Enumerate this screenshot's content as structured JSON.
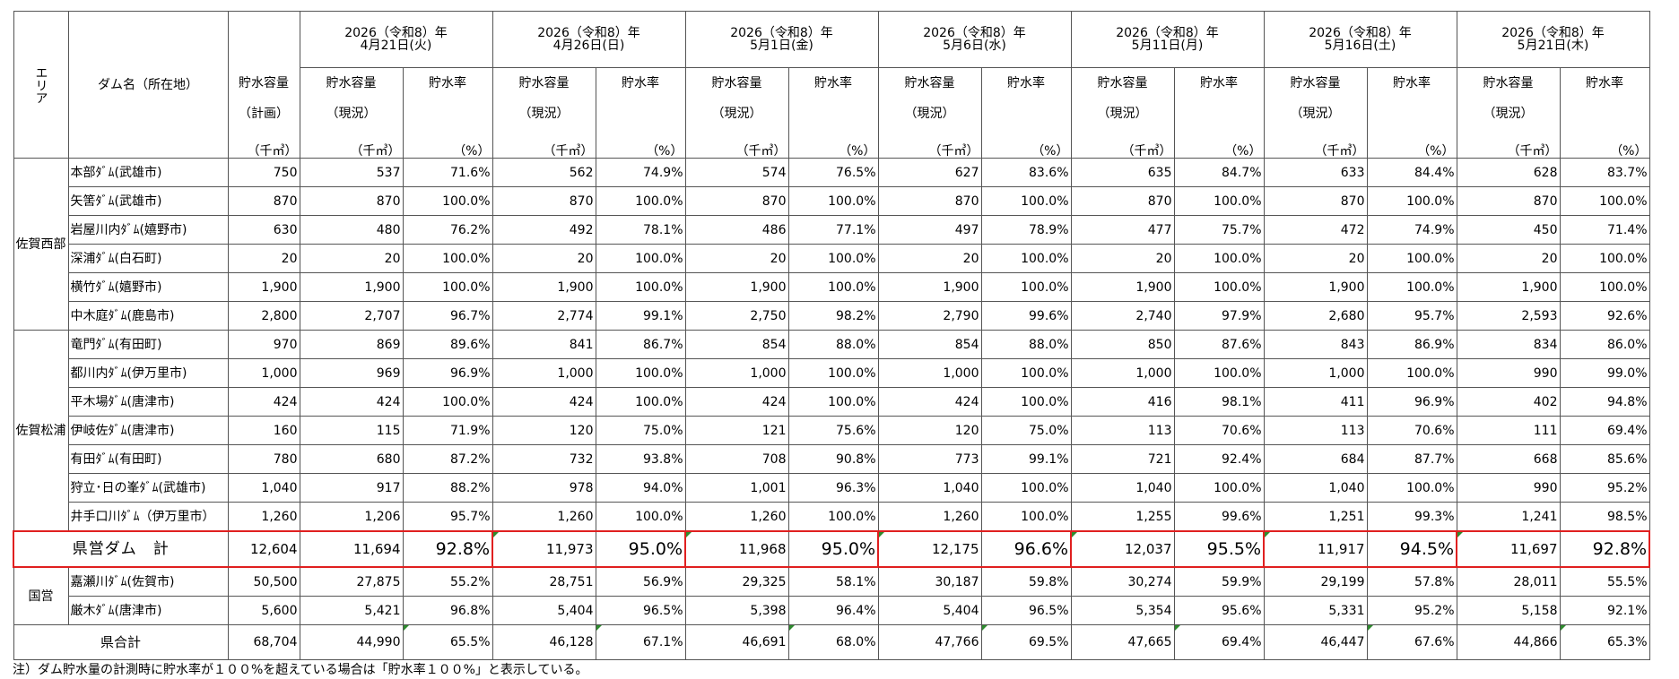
{
  "header": {
    "area": "エリア",
    "dam_name": "ダム名（所在地）",
    "plan_cap_line1": "貯水容量",
    "plan_cap_line2": "（計画）",
    "unit_volume": "（千㎥）",
    "cur_cap_line1": "貯水容量",
    "cur_cap_line2": "（現況）",
    "rate_label": "貯水率",
    "unit_rate": "（%）",
    "dates": [
      {
        "year": "2026（令和8）年",
        "day": "4月21日(火)"
      },
      {
        "year": "2026（令和8）年",
        "day": "4月26日(日)"
      },
      {
        "year": "2026（令和8）年",
        "day": "5月1日(金)"
      },
      {
        "year": "2026（令和8）年",
        "day": "5月6日(水)"
      },
      {
        "year": "2026（令和8）年",
        "day": "5月11日(月)"
      },
      {
        "year": "2026（令和8）年",
        "day": "5月16日(土)"
      },
      {
        "year": "2026（令和8）年",
        "day": "5月21日(木)"
      }
    ]
  },
  "areas": {
    "west": "佐賀西部",
    "matsuura": "佐賀松浦",
    "national": "国営"
  },
  "rows": [
    {
      "name": "本部ﾀﾞﾑ(武雄市)",
      "plan": "750",
      "vals": [
        [
          "537",
          "71.6%"
        ],
        [
          "562",
          "74.9%"
        ],
        [
          "574",
          "76.5%"
        ],
        [
          "627",
          "83.6%"
        ],
        [
          "635",
          "84.7%"
        ],
        [
          "633",
          "84.4%"
        ],
        [
          "628",
          "83.7%"
        ]
      ]
    },
    {
      "name": "矢筈ﾀﾞﾑ(武雄市)",
      "plan": "870",
      "vals": [
        [
          "870",
          "100.0%"
        ],
        [
          "870",
          "100.0%"
        ],
        [
          "870",
          "100.0%"
        ],
        [
          "870",
          "100.0%"
        ],
        [
          "870",
          "100.0%"
        ],
        [
          "870",
          "100.0%"
        ],
        [
          "870",
          "100.0%"
        ]
      ]
    },
    {
      "name": "岩屋川内ﾀﾞﾑ(嬉野市)",
      "plan": "630",
      "vals": [
        [
          "480",
          "76.2%"
        ],
        [
          "492",
          "78.1%"
        ],
        [
          "486",
          "77.1%"
        ],
        [
          "497",
          "78.9%"
        ],
        [
          "477",
          "75.7%"
        ],
        [
          "472",
          "74.9%"
        ],
        [
          "450",
          "71.4%"
        ]
      ]
    },
    {
      "name": "深浦ﾀﾞﾑ(白石町)",
      "plan": "20",
      "vals": [
        [
          "20",
          "100.0%"
        ],
        [
          "20",
          "100.0%"
        ],
        [
          "20",
          "100.0%"
        ],
        [
          "20",
          "100.0%"
        ],
        [
          "20",
          "100.0%"
        ],
        [
          "20",
          "100.0%"
        ],
        [
          "20",
          "100.0%"
        ]
      ]
    },
    {
      "name": "横竹ﾀﾞﾑ(嬉野市)",
      "plan": "1,900",
      "vals": [
        [
          "1,900",
          "100.0%"
        ],
        [
          "1,900",
          "100.0%"
        ],
        [
          "1,900",
          "100.0%"
        ],
        [
          "1,900",
          "100.0%"
        ],
        [
          "1,900",
          "100.0%"
        ],
        [
          "1,900",
          "100.0%"
        ],
        [
          "1,900",
          "100.0%"
        ]
      ]
    },
    {
      "name": "中木庭ﾀﾞﾑ(鹿島市)",
      "plan": "2,800",
      "vals": [
        [
          "2,707",
          "96.7%"
        ],
        [
          "2,774",
          "99.1%"
        ],
        [
          "2,750",
          "98.2%"
        ],
        [
          "2,790",
          "99.6%"
        ],
        [
          "2,740",
          "97.9%"
        ],
        [
          "2,680",
          "95.7%"
        ],
        [
          "2,593",
          "92.6%"
        ]
      ]
    },
    {
      "name": "竜門ﾀﾞﾑ(有田町)",
      "plan": "970",
      "vals": [
        [
          "869",
          "89.6%"
        ],
        [
          "841",
          "86.7%"
        ],
        [
          "854",
          "88.0%"
        ],
        [
          "854",
          "88.0%"
        ],
        [
          "850",
          "87.6%"
        ],
        [
          "843",
          "86.9%"
        ],
        [
          "834",
          "86.0%"
        ]
      ]
    },
    {
      "name": "都川内ﾀﾞﾑ(伊万里市)",
      "plan": "1,000",
      "vals": [
        [
          "969",
          "96.9%"
        ],
        [
          "1,000",
          "100.0%"
        ],
        [
          "1,000",
          "100.0%"
        ],
        [
          "1,000",
          "100.0%"
        ],
        [
          "1,000",
          "100.0%"
        ],
        [
          "1,000",
          "100.0%"
        ],
        [
          "990",
          "99.0%"
        ]
      ]
    },
    {
      "name": "平木場ﾀﾞﾑ(唐津市)",
      "plan": "424",
      "vals": [
        [
          "424",
          "100.0%"
        ],
        [
          "424",
          "100.0%"
        ],
        [
          "424",
          "100.0%"
        ],
        [
          "424",
          "100.0%"
        ],
        [
          "416",
          "98.1%"
        ],
        [
          "411",
          "96.9%"
        ],
        [
          "402",
          "94.8%"
        ]
      ]
    },
    {
      "name": "伊岐佐ﾀﾞﾑ(唐津市)",
      "plan": "160",
      "vals": [
        [
          "115",
          "71.9%"
        ],
        [
          "120",
          "75.0%"
        ],
        [
          "121",
          "75.6%"
        ],
        [
          "120",
          "75.0%"
        ],
        [
          "113",
          "70.6%"
        ],
        [
          "113",
          "70.6%"
        ],
        [
          "111",
          "69.4%"
        ]
      ]
    },
    {
      "name": "有田ﾀﾞﾑ(有田町)",
      "plan": "780",
      "vals": [
        [
          "680",
          "87.2%"
        ],
        [
          "732",
          "93.8%"
        ],
        [
          "708",
          "90.8%"
        ],
        [
          "773",
          "99.1%"
        ],
        [
          "721",
          "92.4%"
        ],
        [
          "684",
          "87.7%"
        ],
        [
          "668",
          "85.6%"
        ]
      ]
    },
    {
      "name": "狩立･日の峯ﾀﾞﾑ(武雄市)",
      "plan": "1,040",
      "vals": [
        [
          "917",
          "88.2%"
        ],
        [
          "978",
          "94.0%"
        ],
        [
          "1,001",
          "96.3%"
        ],
        [
          "1,040",
          "100.0%"
        ],
        [
          "1,040",
          "100.0%"
        ],
        [
          "1,040",
          "100.0%"
        ],
        [
          "990",
          "95.2%"
        ]
      ]
    },
    {
      "name": "井手口川ﾀﾞﾑ（伊万里市）",
      "plan": "1,260",
      "vals": [
        [
          "1,206",
          "95.7%"
        ],
        [
          "1,260",
          "100.0%"
        ],
        [
          "1,260",
          "100.0%"
        ],
        [
          "1,260",
          "100.0%"
        ],
        [
          "1,255",
          "99.6%"
        ],
        [
          "1,251",
          "99.3%"
        ],
        [
          "1,241",
          "98.5%"
        ]
      ]
    }
  ],
  "pref_total": {
    "label": "県営ダム　計",
    "plan": "12,604",
    "vals": [
      [
        "11,694",
        "92.8%"
      ],
      [
        "11,973",
        "95.0%"
      ],
      [
        "11,968",
        "95.0%"
      ],
      [
        "12,175",
        "96.6%"
      ],
      [
        "12,037",
        "95.5%"
      ],
      [
        "11,917",
        "94.5%"
      ],
      [
        "11,697",
        "92.8%"
      ]
    ]
  },
  "national_rows": [
    {
      "name": "嘉瀬川ﾀﾞﾑ(佐賀市)",
      "plan": "50,500",
      "vals": [
        [
          "27,875",
          "55.2%"
        ],
        [
          "28,751",
          "56.9%"
        ],
        [
          "29,325",
          "58.1%"
        ],
        [
          "30,187",
          "59.8%"
        ],
        [
          "30,274",
          "59.9%"
        ],
        [
          "29,199",
          "57.8%"
        ],
        [
          "28,011",
          "55.5%"
        ]
      ]
    },
    {
      "name": "厳木ﾀﾞﾑ(唐津市)",
      "plan": "5,600",
      "vals": [
        [
          "5,421",
          "96.8%"
        ],
        [
          "5,404",
          "96.5%"
        ],
        [
          "5,398",
          "96.4%"
        ],
        [
          "5,404",
          "96.5%"
        ],
        [
          "5,354",
          "95.6%"
        ],
        [
          "5,331",
          "95.2%"
        ],
        [
          "5,158",
          "92.1%"
        ]
      ]
    }
  ],
  "grand_total": {
    "label": "県合計",
    "plan": "68,704",
    "vals": [
      [
        "44,990",
        "65.5%"
      ],
      [
        "46,128",
        "67.1%"
      ],
      [
        "46,691",
        "68.0%"
      ],
      [
        "47,766",
        "69.5%"
      ],
      [
        "47,665",
        "69.4%"
      ],
      [
        "46,447",
        "67.6%"
      ],
      [
        "44,866",
        "65.3%"
      ]
    ]
  },
  "note": "注）ダム貯水量の計測時に貯水率が１００%を超えている場合は「貯水率１００%」と表示している。"
}
